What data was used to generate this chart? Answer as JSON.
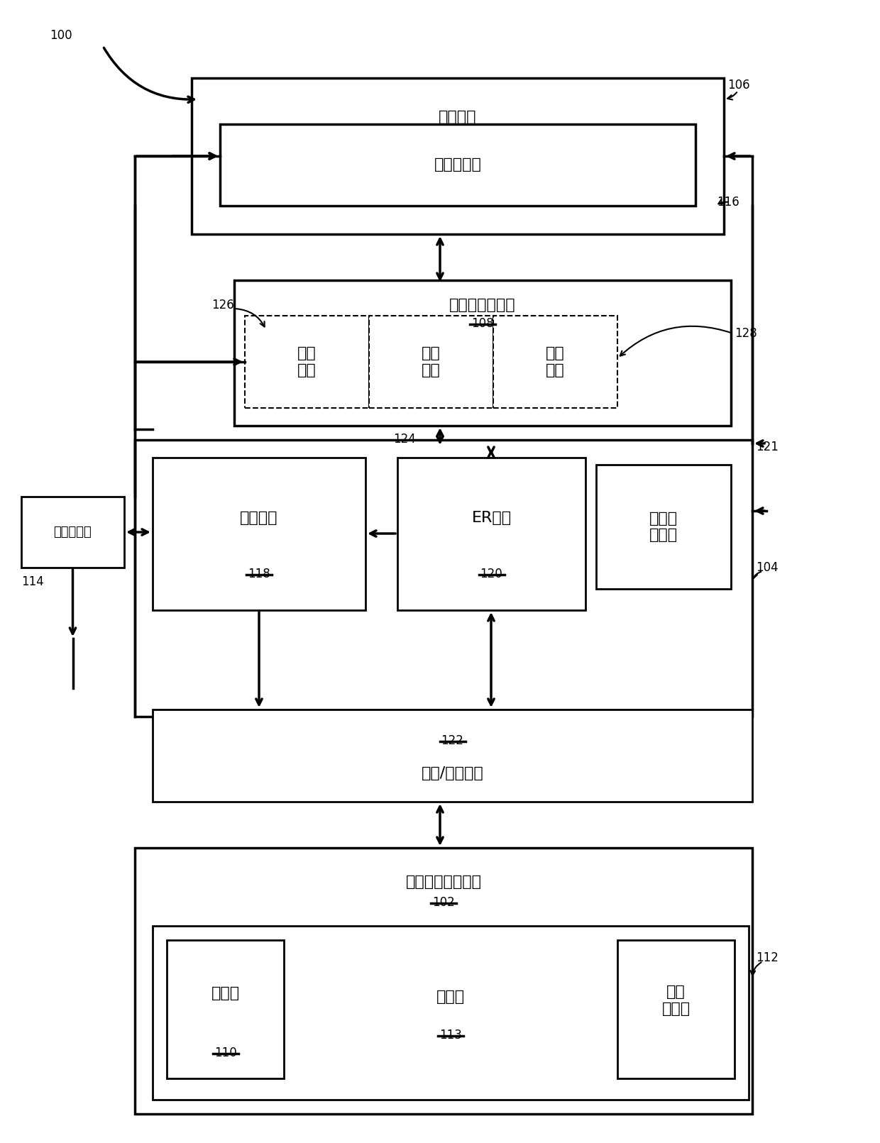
{
  "bg_color": "#ffffff",
  "line_color": "#000000",
  "label_100": "100",
  "label_106": "106",
  "label_116": "116",
  "label_126": "126",
  "label_108": "108",
  "label_124": "124",
  "label_128": "128",
  "label_121": "121",
  "label_114": "114",
  "label_118": "118",
  "label_120": "120",
  "label_122": "122",
  "label_102": "102",
  "label_104": "104",
  "label_110": "110",
  "label_112": "112",
  "label_113": "113",
  "text_control_interface": "控制接口",
  "text_bus_controller": "总线控制器",
  "text_local_data_store": "本地数据存储器",
  "text_calibration_data": "校正\n数据",
  "text_raw_data": "原始\n数据",
  "text_user_data": "用户\n数据",
  "text_threshold_opt": "阈値优化",
  "text_er_circuit": "ER电路",
  "text_cal_model": "校正模\n型特性",
  "text_rw_circuit": "读出/写入电路",
  "text_nv_array": "非易失性存储阵列",
  "text_data_page": "数据页",
  "text_physical_block": "物理块",
  "text_raw_data_page": "原始\n数据页",
  "text_control_processor": "控制处理器"
}
